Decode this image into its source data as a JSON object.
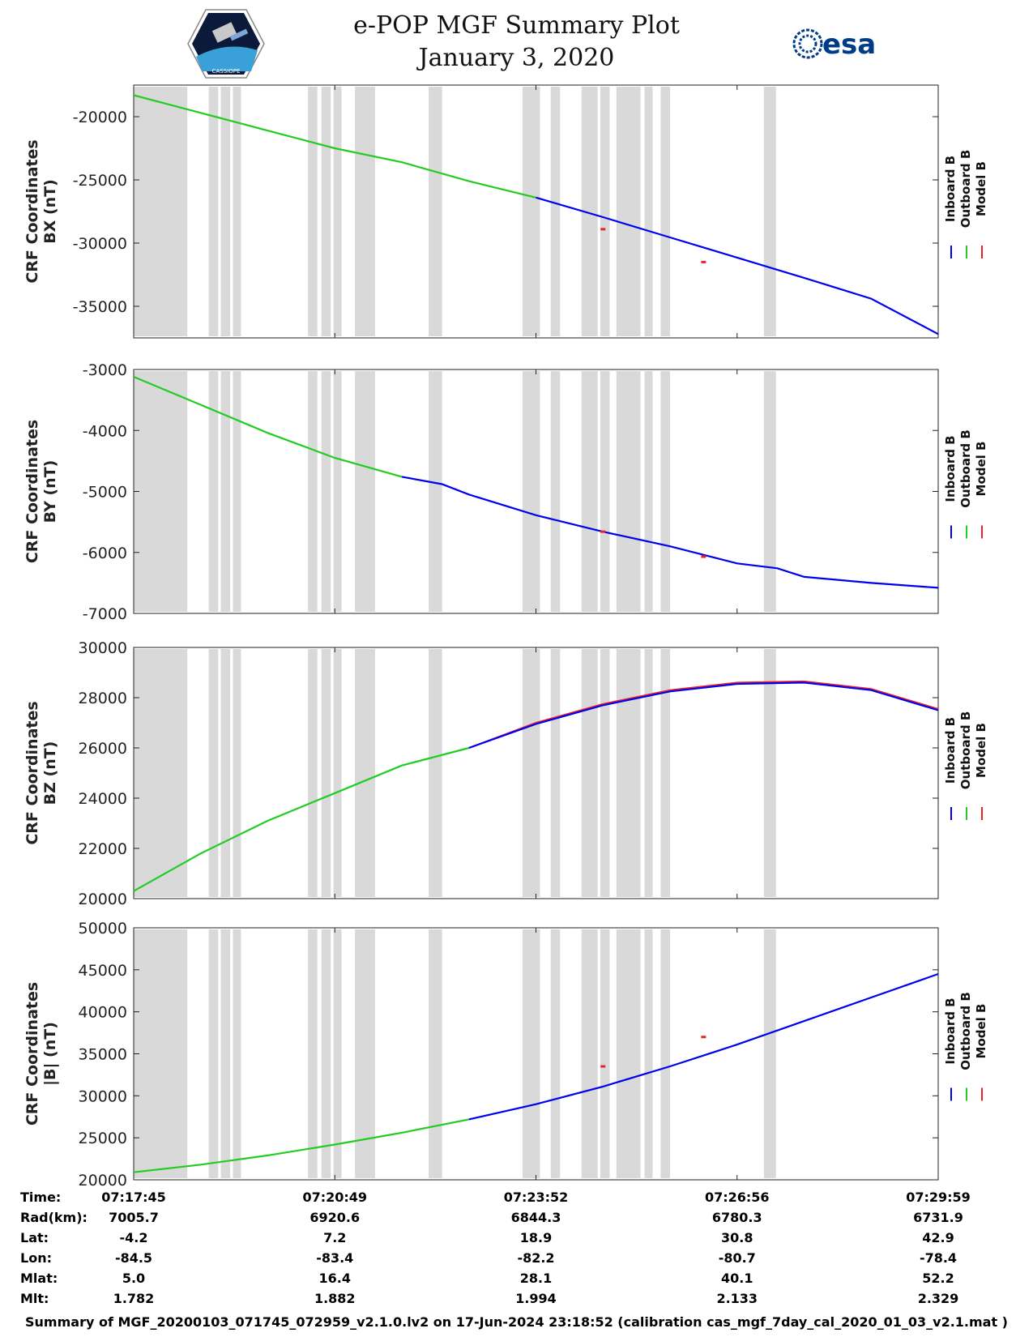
{
  "header": {
    "title_line1": "e-POP MGF Summary Plot",
    "title_line2": "January 3, 2020",
    "logo_left_text": "CASSIOPE",
    "logo_right_text": "esa"
  },
  "colors": {
    "inboard": "#0000ee",
    "outboard": "#22cc22",
    "model": "#ee2222",
    "gap": "#d9d9d9"
  },
  "chart_data": [
    {
      "type": "line",
      "ylabel_line1": "CRF Coordinates",
      "ylabel_line2": "BX (nT)",
      "ylim": [
        -37500,
        -17500
      ],
      "yticks": [
        -20000,
        -25000,
        -30000,
        -35000
      ],
      "ytick_labels": [
        "-20000",
        "-25000",
        "-30000",
        "-35000"
      ],
      "legend": [
        "Inboard B",
        "Outboard B",
        "Model B"
      ],
      "x_minutes": [
        0,
        1,
        2,
        3,
        4,
        5,
        6,
        7,
        8,
        9,
        10,
        11,
        12
      ],
      "outboard": [
        -18300,
        -19700,
        -21100,
        -22500,
        -23600,
        -25100,
        -26400,
        null,
        null,
        null,
        null,
        null,
        null
      ],
      "inboard": [
        null,
        null,
        null,
        null,
        null,
        null,
        -26400,
        -27950,
        -29550,
        -31150,
        -32750,
        -34400,
        -37200
      ],
      "model_marks": [
        {
          "x": 7.0,
          "y": -28900
        },
        {
          "x": 8.5,
          "y": -31500
        }
      ]
    },
    {
      "type": "line",
      "ylabel_line1": "CRF Coordinates",
      "ylabel_line2": "BY (nT)",
      "ylim": [
        -7000,
        -3000
      ],
      "yticks": [
        -3000,
        -4000,
        -5000,
        -6000,
        -7000
      ],
      "ytick_labels": [
        "-3000",
        "-4000",
        "-5000",
        "-6000",
        "-7000"
      ],
      "legend": [
        "Inboard B",
        "Outboard B",
        "Model B"
      ],
      "x_minutes": [
        0,
        1,
        2,
        3,
        4,
        4.6,
        5,
        6,
        7,
        8,
        9,
        9.6,
        10,
        11,
        12
      ],
      "outboard": [
        -3120,
        -3580,
        -4040,
        -4450,
        -4760,
        null,
        null,
        null,
        null,
        null,
        null,
        null,
        null,
        null,
        null
      ],
      "inboard": [
        null,
        null,
        null,
        null,
        -4760,
        -4880,
        -5050,
        -5390,
        -5660,
        -5900,
        -6180,
        -6260,
        -6400,
        -6500,
        -6580
      ],
      "model_marks": [
        {
          "x": 7.0,
          "y": -5660
        },
        {
          "x": 8.5,
          "y": -6070
        }
      ]
    },
    {
      "type": "line",
      "ylabel_line1": "CRF Coordinates",
      "ylabel_line2": "BZ (nT)",
      "ylim": [
        20000,
        30000
      ],
      "yticks": [
        20000,
        22000,
        24000,
        26000,
        28000,
        30000
      ],
      "ytick_labels": [
        "20000",
        "22000",
        "24000",
        "26000",
        "28000",
        "30000"
      ],
      "legend": [
        "Inboard B",
        "Outboard B",
        "Model B"
      ],
      "x_minutes": [
        0,
        1,
        2,
        3,
        4,
        5,
        6,
        7,
        8,
        9,
        10,
        11,
        12
      ],
      "outboard": [
        20300,
        21800,
        23100,
        24200,
        25300,
        26000,
        null,
        null,
        null,
        null,
        null,
        null,
        null
      ],
      "inboard": [
        null,
        null,
        null,
        null,
        null,
        26000,
        26950,
        27700,
        28250,
        28550,
        28600,
        28300,
        27500
      ],
      "model": [
        null,
        null,
        null,
        null,
        null,
        26000,
        27000,
        27750,
        28300,
        28600,
        28650,
        28350,
        27550
      ],
      "model_marks": []
    },
    {
      "type": "line",
      "ylabel_line1": "CRF Coordinates",
      "ylabel_line2": "|B| (nT)",
      "ylim": [
        20000,
        50000
      ],
      "yticks": [
        20000,
        25000,
        30000,
        35000,
        40000,
        45000,
        50000
      ],
      "ytick_labels": [
        "20000",
        "25000",
        "30000",
        "35000",
        "40000",
        "45000",
        "50000"
      ],
      "legend": [
        "Inboard B",
        "Outboard B",
        "Model B"
      ],
      "x_minutes": [
        0,
        1,
        2,
        3,
        4,
        5,
        6,
        7,
        8,
        9,
        10,
        11,
        12
      ],
      "outboard": [
        20900,
        21800,
        22900,
        24200,
        25600,
        27200,
        null,
        null,
        null,
        null,
        null,
        null,
        null
      ],
      "inboard": [
        null,
        null,
        null,
        null,
        null,
        27200,
        29000,
        31100,
        33500,
        36100,
        38900,
        41700,
        44500
      ],
      "model_marks": [
        {
          "x": 7.0,
          "y": 33500
        },
        {
          "x": 8.5,
          "y": 37000
        }
      ]
    }
  ],
  "gap_intervals_min": [
    [
      0,
      0.8
    ],
    [
      1.12,
      1.26
    ],
    [
      1.3,
      1.44
    ],
    [
      1.48,
      1.6
    ],
    [
      2.6,
      2.74
    ],
    [
      2.8,
      2.94
    ],
    [
      2.98,
      3.1
    ],
    [
      3.3,
      3.6
    ],
    [
      4.4,
      4.6
    ],
    [
      5.8,
      6.06
    ],
    [
      6.22,
      6.36
    ],
    [
      6.68,
      6.92
    ],
    [
      6.96,
      7.1
    ],
    [
      7.2,
      7.56
    ],
    [
      7.62,
      7.74
    ],
    [
      7.86,
      8.0
    ],
    [
      9.4,
      9.58
    ]
  ],
  "info_table": {
    "labels": [
      "Time:",
      "Rad(km):",
      "Lat:",
      "Lon:",
      "Mlat:",
      "Mlt:"
    ],
    "columns": [
      [
        "07:17:45",
        "7005.7",
        "-4.2",
        "-84.5",
        "5.0",
        "1.782"
      ],
      [
        "07:20:49",
        "6920.6",
        "7.2",
        "-83.4",
        "16.4",
        "1.882"
      ],
      [
        "07:23:52",
        "6844.3",
        "18.9",
        "-82.2",
        "28.1",
        "1.994"
      ],
      [
        "07:26:56",
        "6780.3",
        "30.8",
        "-80.7",
        "40.1",
        "2.133"
      ],
      [
        "07:29:59",
        "6731.9",
        "42.9",
        "-78.4",
        "52.2",
        "2.329"
      ]
    ]
  },
  "footer": "Summary of MGF_20200103_071745_072959_v2.1.0.lv2 on 17-Jun-2024 23:18:52 (calibration cas_mgf_7day_cal_2020_01_03_v2.1.mat )"
}
